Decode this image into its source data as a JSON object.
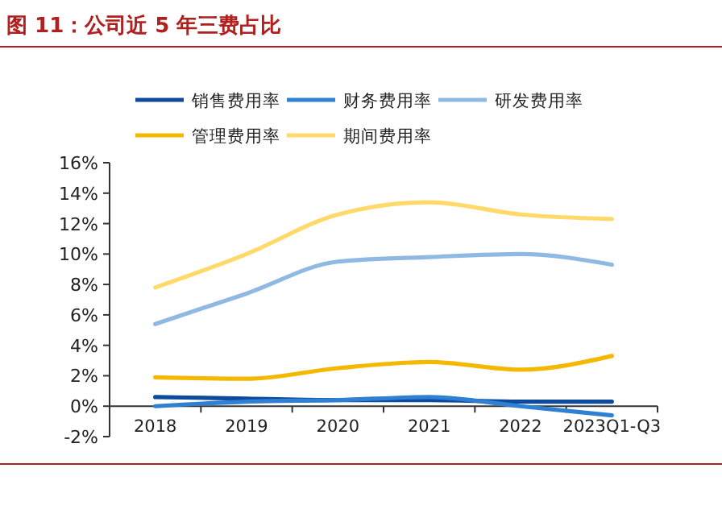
{
  "chart_data": {
    "type": "line",
    "title": "图 11：公司近 5 年三费占比",
    "categories": [
      "2018",
      "2019",
      "2020",
      "2021",
      "2022",
      "2023Q1-Q3"
    ],
    "series": [
      {
        "name": "销售费用率",
        "color": "#0d4a9e",
        "values": [
          0.6,
          0.5,
          0.4,
          0.4,
          0.3,
          0.3
        ]
      },
      {
        "name": "财务费用率",
        "color": "#2f80d2",
        "values": [
          0.0,
          0.3,
          0.4,
          0.6,
          0.0,
          -0.6
        ]
      },
      {
        "name": "研发费用率",
        "color": "#8fb9e3",
        "values": [
          5.4,
          7.4,
          9.5,
          9.8,
          10.0,
          9.3
        ]
      },
      {
        "name": "管理费用率",
        "color": "#f5b800",
        "values": [
          1.9,
          1.8,
          2.5,
          2.9,
          2.4,
          3.3
        ]
      },
      {
        "name": "期间费用率",
        "color": "#ffda6b",
        "values": [
          7.8,
          10.0,
          12.6,
          13.4,
          12.6,
          12.3
        ]
      }
    ],
    "ylim": [
      -2,
      16
    ],
    "yticks": [
      {
        "value": -2,
        "label": "-2%"
      },
      {
        "value": 0,
        "label": "0%"
      },
      {
        "value": 2,
        "label": "2%"
      },
      {
        "value": 4,
        "label": "4%"
      },
      {
        "value": 6,
        "label": "6%"
      },
      {
        "value": 8,
        "label": "8%"
      },
      {
        "value": 10,
        "label": "10%"
      },
      {
        "value": 12,
        "label": "12%"
      },
      {
        "value": 14,
        "label": "14%"
      },
      {
        "value": 16,
        "label": "16%"
      }
    ],
    "legend": "top",
    "grid": false,
    "marker": "none",
    "line_style": "solid"
  }
}
